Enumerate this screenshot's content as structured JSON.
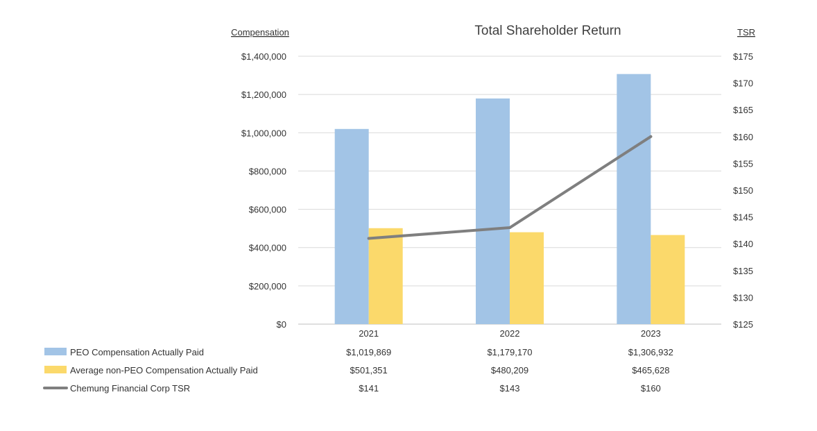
{
  "chart_data": {
    "type": "bar",
    "title": "Total Shareholder Return",
    "left_axis_label": "Compensation",
    "right_axis_label": "TSR",
    "categories": [
      "2021",
      "2022",
      "2023"
    ],
    "series": [
      {
        "name": "PEO Compensation Actually Paid",
        "kind": "bar",
        "axis": "left",
        "color": "#A2C4E6",
        "values": [
          1019869,
          1179170,
          1306932
        ],
        "display": [
          "$1,019,869",
          "$1,179,170",
          "$1,306,932"
        ]
      },
      {
        "name": "Average non-PEO Compensation Actually Paid",
        "kind": "bar",
        "axis": "left",
        "color": "#FBD96B",
        "values": [
          501351,
          480209,
          465628
        ],
        "display": [
          "$501,351",
          "$480,209",
          "$465,628"
        ]
      },
      {
        "name": "Chemung Financial Corp TSR",
        "kind": "line",
        "axis": "right",
        "color": "#7F7F7F",
        "values": [
          141,
          143,
          160
        ],
        "display": [
          "$141",
          "$143",
          "$160"
        ]
      }
    ],
    "left_axis": {
      "min": 0,
      "max": 1400000,
      "step": 200000,
      "tick_labels": [
        "$0",
        "$200,000",
        "$400,000",
        "$600,000",
        "$800,000",
        "$1,000,000",
        "$1,200,000",
        "$1,400,000"
      ]
    },
    "right_axis": {
      "min": 125,
      "max": 175,
      "step": 5,
      "tick_labels": [
        "$125",
        "$130",
        "$135",
        "$140",
        "$145",
        "$150",
        "$155",
        "$160",
        "$165",
        "$170",
        "$175"
      ]
    },
    "grid": true,
    "legend": "data-table-below"
  }
}
